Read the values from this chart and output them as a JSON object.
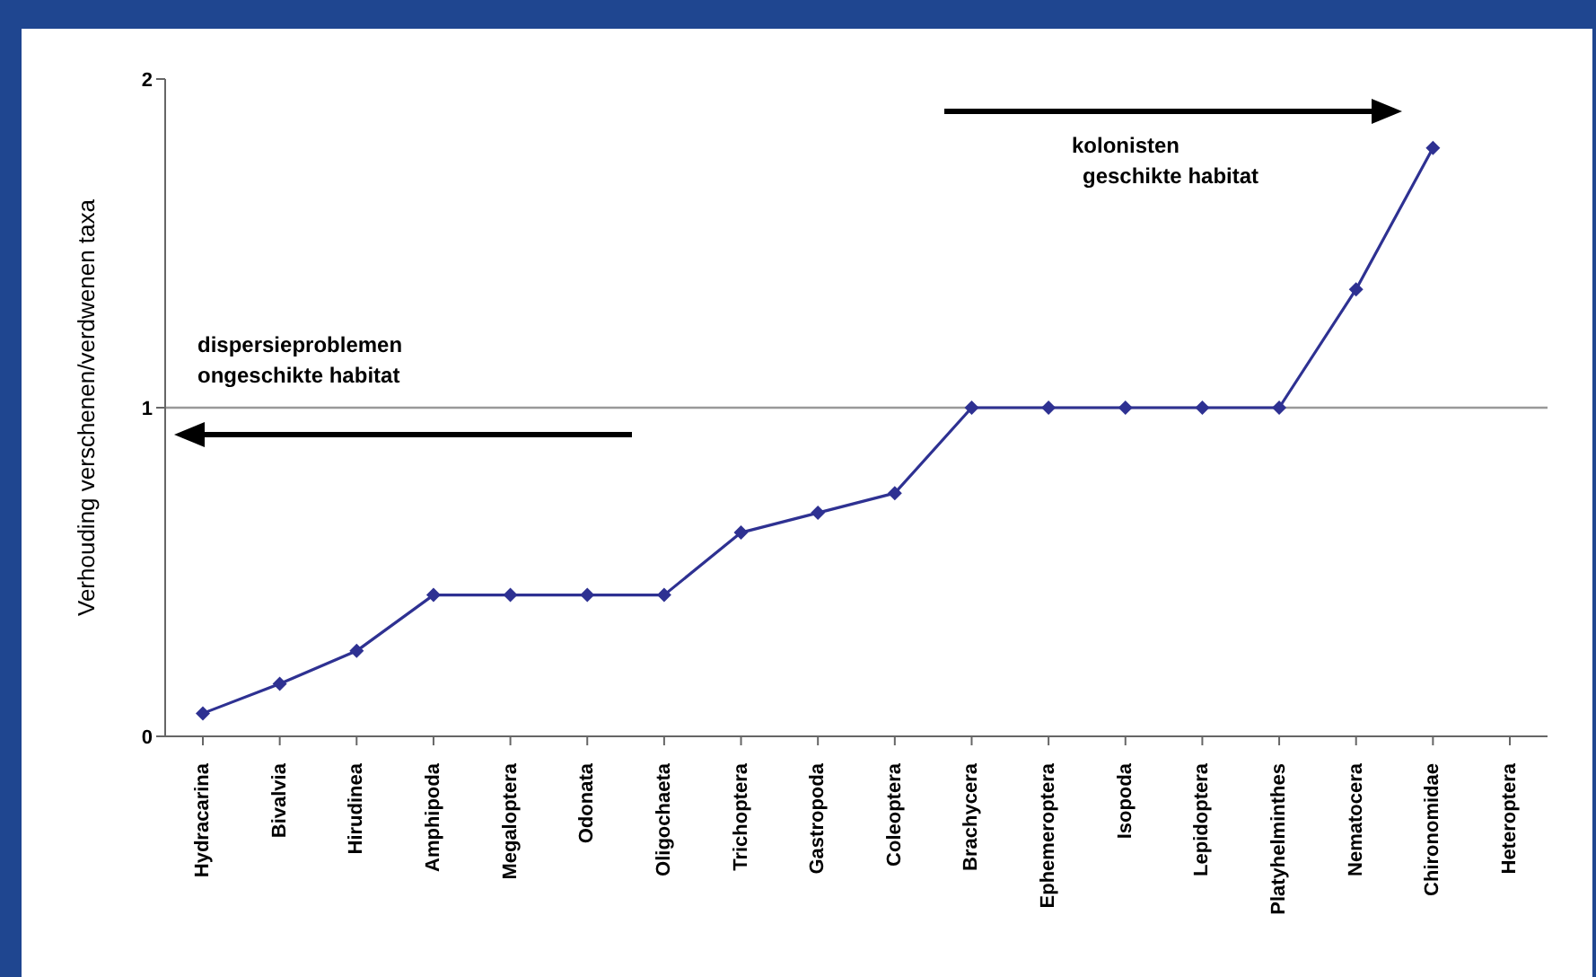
{
  "chart_data": {
    "type": "line",
    "ylabel": "Verhouding verschenen/verdwenen taxa",
    "categories": [
      "Hydracarina",
      "Bivalvia",
      "Hirudinea",
      "Amphipoda",
      "Megaloptera",
      "Odonata",
      "Oligochaeta",
      "Trichoptera",
      "Gastropoda",
      "Coleoptera",
      "Brachycera",
      "Ephemeroptera",
      "Isopoda",
      "Lepidoptera",
      "Platyhelminthes",
      "Nematocera",
      "Chironomidae",
      "Heteroptera"
    ],
    "series": [
      {
        "color": "#2e3192",
        "values": [
          0.07,
          0.16,
          0.26,
          0.43,
          0.43,
          0.43,
          0.43,
          0.62,
          0.68,
          0.74,
          1,
          1,
          1,
          1,
          1,
          1.36,
          1.79,
          null
        ]
      }
    ],
    "ylim": [
      0,
      2
    ],
    "yticks": [
      0,
      1,
      2
    ],
    "grid": false,
    "legend": false,
    "marker": "diamond",
    "line_style": "solid",
    "ref_lines": [
      {
        "axis": "y",
        "value": 1,
        "color": "#999999"
      }
    ],
    "annotations": [
      "dispersieproblemen",
      "ongeschikte habitat",
      "kolonisten",
      "geschikte habitat"
    ]
  }
}
